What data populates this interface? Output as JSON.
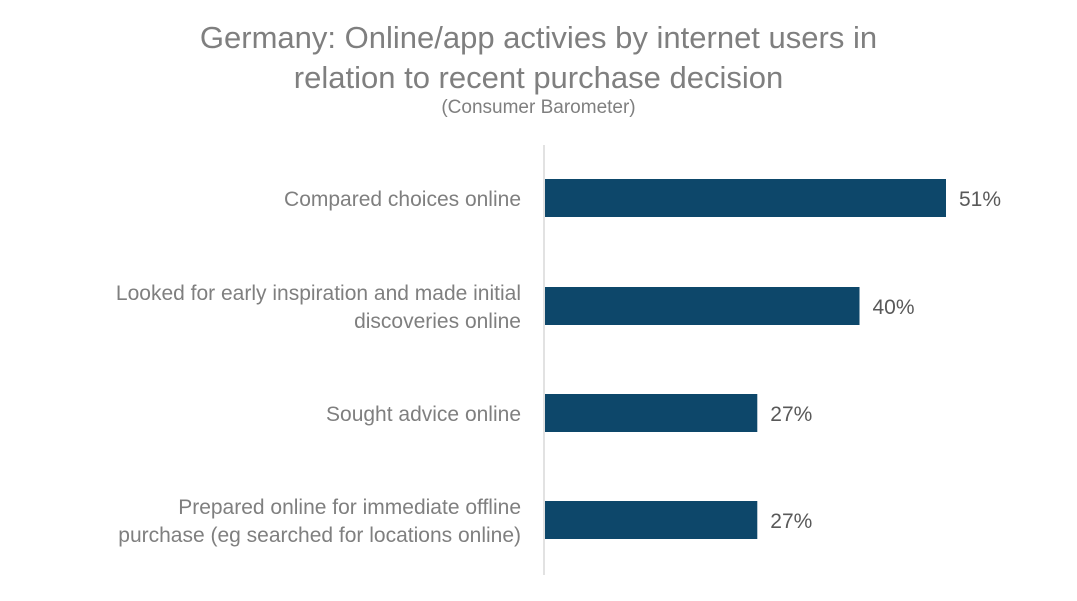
{
  "chart_data": {
    "type": "bar",
    "orientation": "horizontal",
    "title": "Germany: Online/app activies by internet users in relation to recent purchase decision",
    "title_lines": [
      "Germany: Online/app activies by internet users in",
      "relation to recent purchase decision"
    ],
    "subtitle": "(Consumer Barometer)",
    "categories": [
      "Compared choices online",
      "Looked for early inspiration and made initial discoveries online",
      "Sought advice online",
      "Prepared online for immediate offline purchase (eg searched for locations online)"
    ],
    "category_lines": [
      [
        "Compared choices online"
      ],
      [
        "Looked for early inspiration and made initial",
        "discoveries online"
      ],
      [
        "Sought advice online"
      ],
      [
        "Prepared online for immediate offline",
        "purchase (eg searched for locations online)"
      ]
    ],
    "values": [
      51,
      40,
      27,
      27
    ],
    "value_labels": [
      "51%",
      "40%",
      "27%",
      "27%"
    ],
    "xlim": [
      0,
      60
    ],
    "grid": false,
    "bar_color": "#0d476a",
    "axis_color": "#d9d9d9"
  }
}
